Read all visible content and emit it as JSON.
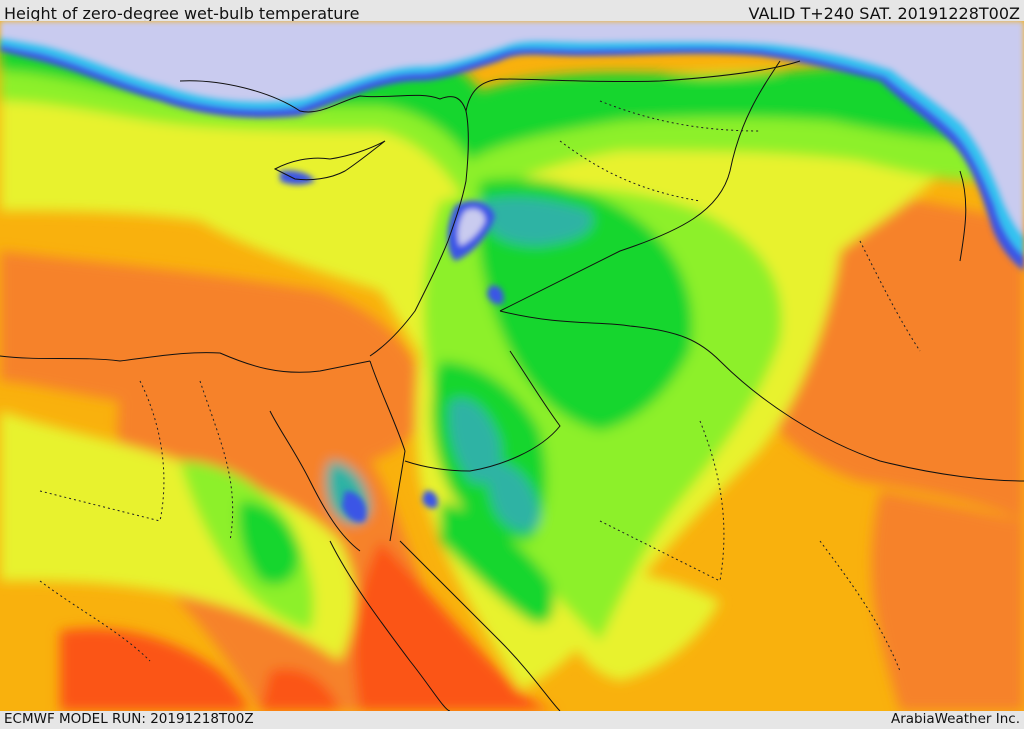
{
  "header": {
    "title": "Height of zero-degree wet-bulb temperature",
    "valid": "VALID T+240 SAT. 20191228T00Z"
  },
  "footer": {
    "model_run": "ECMWF MODEL RUN: 20191218T00Z",
    "credit": "ArabiaWeather Inc."
  },
  "map": {
    "colors": {
      "sea_ice": "#c9cbef",
      "blue": "#3a55e6",
      "cyan": "#35c2f0",
      "teal": "#2fb3a4",
      "green": "#17d62d",
      "light_green": "#8df02a",
      "yellow_green": "#e8f22e",
      "orange_yellow": "#f9b10d",
      "orange": "#f6822c",
      "red_orange": "#fb5418"
    }
  }
}
